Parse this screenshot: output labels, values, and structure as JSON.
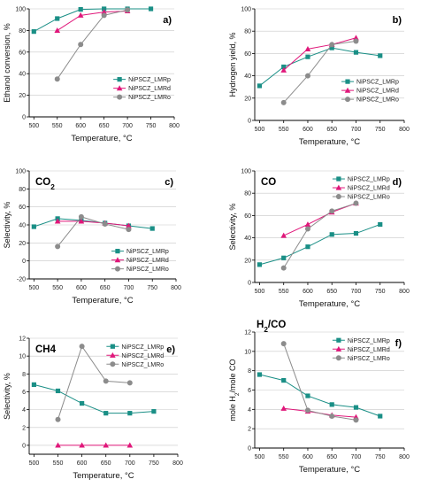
{
  "colors": {
    "LMRp": "#1a8f86",
    "LMRd": "#e0177a",
    "LMRo": "#8c8c8c",
    "grid": "#c8c8c8",
    "axis": "#000000"
  },
  "chart_data": [
    {
      "id": "a",
      "type": "line",
      "panel_letter": "a)",
      "inset_label": "",
      "title": "",
      "xlabel": "Temperature, °C",
      "ylabel": "Ethanol conversion, %",
      "xlim": [
        490,
        800
      ],
      "ylim": [
        0,
        100
      ],
      "xticks": [
        500,
        550,
        600,
        650,
        700,
        750,
        800
      ],
      "yticks": [
        0,
        20,
        40,
        60,
        80,
        100
      ],
      "grid": true,
      "legend_position": "middle-right",
      "series": [
        {
          "name": "NiPSCZ_LMRp",
          "key": "LMRp",
          "x": [
            500,
            550,
            600,
            650,
            700,
            750
          ],
          "y": [
            79,
            91,
            99.5,
            100,
            100,
            100
          ]
        },
        {
          "name": "NiPSCZ_LMRd",
          "key": "LMRd",
          "x": [
            550,
            600,
            650,
            700
          ],
          "y": [
            80,
            94,
            97,
            98
          ]
        },
        {
          "name": "NiPSCZ_LMRo",
          "key": "LMRo",
          "x": [
            550,
            600,
            650,
            700
          ],
          "y": [
            35,
            67,
            94,
            99
          ]
        }
      ]
    },
    {
      "id": "b",
      "type": "line",
      "panel_letter": "b)",
      "inset_label": "",
      "title": "",
      "xlabel": "Temperature, °C",
      "ylabel": "Hydrogen yield, %",
      "xlim": [
        490,
        800
      ],
      "ylim": [
        0,
        100
      ],
      "xticks": [
        500,
        550,
        600,
        650,
        700,
        750,
        800
      ],
      "yticks": [
        0,
        20,
        40,
        60,
        80,
        100
      ],
      "grid": true,
      "legend_position": "middle-right",
      "series": [
        {
          "name": "NiPSCZ_LMRp",
          "key": "LMRp",
          "x": [
            500,
            550,
            600,
            650,
            700,
            750
          ],
          "y": [
            31,
            48,
            57,
            65,
            61,
            58
          ]
        },
        {
          "name": "NiPSCZ_LMRd",
          "key": "LMRd",
          "x": [
            550,
            600,
            650,
            700
          ],
          "y": [
            45,
            64,
            68,
            74
          ]
        },
        {
          "name": "NiPSCZ_LMRo",
          "key": "LMRo",
          "x": [
            550,
            600,
            650,
            700
          ],
          "y": [
            16,
            40,
            68,
            71
          ]
        }
      ]
    },
    {
      "id": "c",
      "type": "line",
      "panel_letter": "c)",
      "inset_label": "CO2",
      "title": "",
      "xlabel": "Temperature, °C",
      "ylabel": "Selectivity, %",
      "xlim": [
        490,
        800
      ],
      "ylim": [
        -20,
        100
      ],
      "xticks": [
        500,
        550,
        600,
        650,
        700,
        750,
        800
      ],
      "yticks": [
        -20,
        0,
        20,
        40,
        60,
        80,
        100
      ],
      "grid": true,
      "legend_position": "bottom-right",
      "series": [
        {
          "name": "NiPSCZ_LMRp",
          "key": "LMRp",
          "x": [
            500,
            550,
            600,
            650,
            700,
            750
          ],
          "y": [
            38,
            47,
            45,
            42,
            39,
            36
          ]
        },
        {
          "name": "NiPSCZ_LMRd",
          "key": "LMRd",
          "x": [
            550,
            600,
            650,
            700
          ],
          "y": [
            44,
            44,
            42,
            39
          ]
        },
        {
          "name": "NiPSCZ_LMRo",
          "key": "LMRo",
          "x": [
            550,
            600,
            650,
            700
          ],
          "y": [
            16,
            49,
            41,
            35
          ]
        }
      ]
    },
    {
      "id": "d",
      "type": "line",
      "panel_letter": "d)",
      "inset_label": "CO",
      "title": "",
      "xlabel": "Temperature, °C",
      "ylabel": "Selectivity, %",
      "xlim": [
        490,
        800
      ],
      "ylim": [
        0,
        100
      ],
      "xticks": [
        500,
        550,
        600,
        650,
        700,
        750,
        800
      ],
      "yticks": [
        0,
        20,
        40,
        60,
        80,
        100
      ],
      "grid": true,
      "legend_position": "top-right",
      "series": [
        {
          "name": "NiPSCZ_LMRp",
          "key": "LMRp",
          "x": [
            500,
            550,
            600,
            650,
            700,
            750
          ],
          "y": [
            16,
            22,
            32,
            43,
            44,
            52
          ]
        },
        {
          "name": "NiPSCZ_LMRd",
          "key": "LMRd",
          "x": [
            550,
            600,
            650,
            700
          ],
          "y": [
            42,
            52,
            63,
            71
          ]
        },
        {
          "name": "NiPSCZ_LMRo",
          "key": "LMRo",
          "x": [
            550,
            600,
            650,
            700
          ],
          "y": [
            13,
            48,
            64,
            71
          ]
        }
      ]
    },
    {
      "id": "e",
      "type": "line",
      "panel_letter": "e)",
      "inset_label": "CH4",
      "title": "",
      "xlabel": "Temperature, °C",
      "ylabel": "Selectivity, %",
      "xlim": [
        490,
        800
      ],
      "ylim": [
        -1,
        12
      ],
      "xticks": [
        500,
        550,
        600,
        650,
        700,
        750,
        800
      ],
      "yticks": [
        0,
        2,
        4,
        6,
        8,
        10,
        12
      ],
      "grid": true,
      "legend_position": "top-right",
      "series": [
        {
          "name": "NiPSCZ_LMRp",
          "key": "LMRp",
          "x": [
            500,
            550,
            600,
            650,
            700,
            750
          ],
          "y": [
            6.8,
            6.1,
            4.7,
            3.6,
            3.6,
            3.8
          ]
        },
        {
          "name": "NiPSCZ_LMRd",
          "key": "LMRd",
          "x": [
            550,
            600,
            650,
            700
          ],
          "y": [
            0,
            0,
            0,
            0
          ]
        },
        {
          "name": "NiPSCZ_LMRo",
          "key": "LMRo",
          "x": [
            550,
            600,
            650,
            700
          ],
          "y": [
            2.9,
            11.1,
            7.2,
            7.0
          ]
        }
      ]
    },
    {
      "id": "f",
      "type": "line",
      "panel_letter": "f)",
      "inset_label": "H2/CO",
      "title": "",
      "xlabel": "Temperature, °C",
      "ylabel": "mole H2/mole CO",
      "xlim": [
        490,
        800
      ],
      "ylim": [
        0,
        12
      ],
      "xticks": [
        500,
        550,
        600,
        650,
        700,
        750,
        800
      ],
      "yticks": [
        0,
        2,
        4,
        6,
        8,
        10,
        12
      ],
      "grid": true,
      "legend_position": "top-right",
      "series": [
        {
          "name": "NiPSCZ_LMRp",
          "key": "LMRp",
          "x": [
            500,
            550,
            600,
            650,
            700,
            750
          ],
          "y": [
            7.6,
            7.0,
            5.4,
            4.5,
            4.2,
            3.3
          ]
        },
        {
          "name": "NiPSCZ_LMRd",
          "key": "LMRd",
          "x": [
            550,
            600,
            650,
            700
          ],
          "y": [
            4.1,
            3.8,
            3.4,
            3.2
          ]
        },
        {
          "name": "NiPSCZ_LMRo",
          "key": "LMRo",
          "x": [
            550,
            600,
            650,
            700
          ],
          "y": [
            10.8,
            3.9,
            3.3,
            2.9
          ]
        }
      ]
    }
  ]
}
